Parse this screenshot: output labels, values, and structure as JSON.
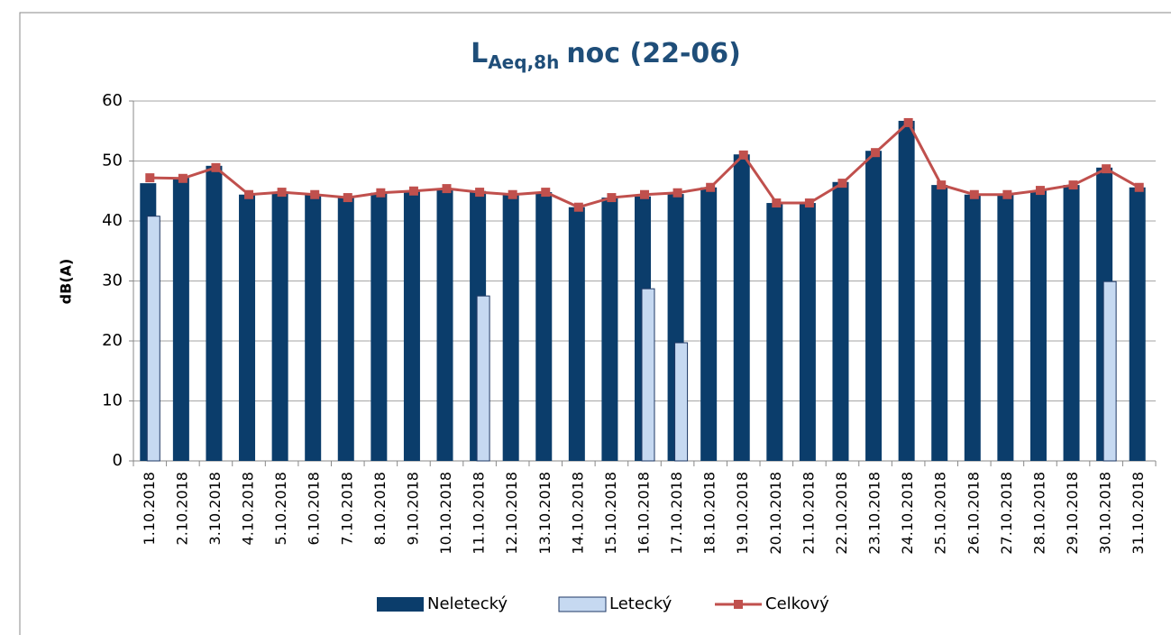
{
  "chart_data": {
    "type": "bar_line",
    "title": [
      "L",
      "Aeq,8h",
      "noc (22-06)"
    ],
    "y_label": "dB(A)",
    "categories": [
      "1.10.2018",
      "2.10.2018",
      "3.10.2018",
      "4.10.2018",
      "5.10.2018",
      "6.10.2018",
      "7.10.2018",
      "8.10.2018",
      "9.10.2018",
      "10.10.2018",
      "11.10.2018",
      "12.10.2018",
      "13.10.2018",
      "14.10.2018",
      "15.10.2018",
      "16.10.2018",
      "17.10.2018",
      "18.10.2018",
      "19.10.2018",
      "20.10.2018",
      "21.10.2018",
      "22.10.2018",
      "23.10.2018",
      "24.10.2018",
      "25.10.2018",
      "26.10.2018",
      "27.10.2018",
      "28.10.2018",
      "29.10.2018",
      "30.10.2018",
      "31.10.2018"
    ],
    "series": [
      {
        "name": "Neletecký",
        "kind": "bar",
        "color": "#0b3d6b",
        "values": [
          46.3,
          47.2,
          49.2,
          44.4,
          44.8,
          44.4,
          43.9,
          44.7,
          45.0,
          45.4,
          45.0,
          44.4,
          44.8,
          42.3,
          43.9,
          44.1,
          44.5,
          45.6,
          51.1,
          43.0,
          43.0,
          46.5,
          51.7,
          56.7,
          46.0,
          44.4,
          44.4,
          45.1,
          46.0,
          48.9,
          45.6
        ]
      },
      {
        "name": "Letecký",
        "kind": "bar",
        "color": "#c6d9f1",
        "values": [
          40.8,
          null,
          null,
          null,
          null,
          null,
          null,
          null,
          null,
          null,
          27.5,
          null,
          null,
          null,
          null,
          28.7,
          19.7,
          null,
          null,
          null,
          null,
          null,
          null,
          null,
          null,
          null,
          null,
          null,
          null,
          29.9,
          null
        ]
      },
      {
        "name": "Celkový",
        "kind": "line",
        "color": "#c0504d",
        "values": [
          47.2,
          47.1,
          48.9,
          44.4,
          44.8,
          44.4,
          43.9,
          44.7,
          45.0,
          45.4,
          44.8,
          44.4,
          44.8,
          42.3,
          43.9,
          44.4,
          44.7,
          45.6,
          51.0,
          43.0,
          43.0,
          46.3,
          51.4,
          56.4,
          46.0,
          44.4,
          44.4,
          45.1,
          46.0,
          48.7,
          45.6
        ]
      }
    ],
    "ylim": [
      0,
      60
    ],
    "yticks": [
      0,
      10,
      20,
      30,
      40,
      50,
      60
    ],
    "grid": true,
    "legend": "bottom"
  }
}
